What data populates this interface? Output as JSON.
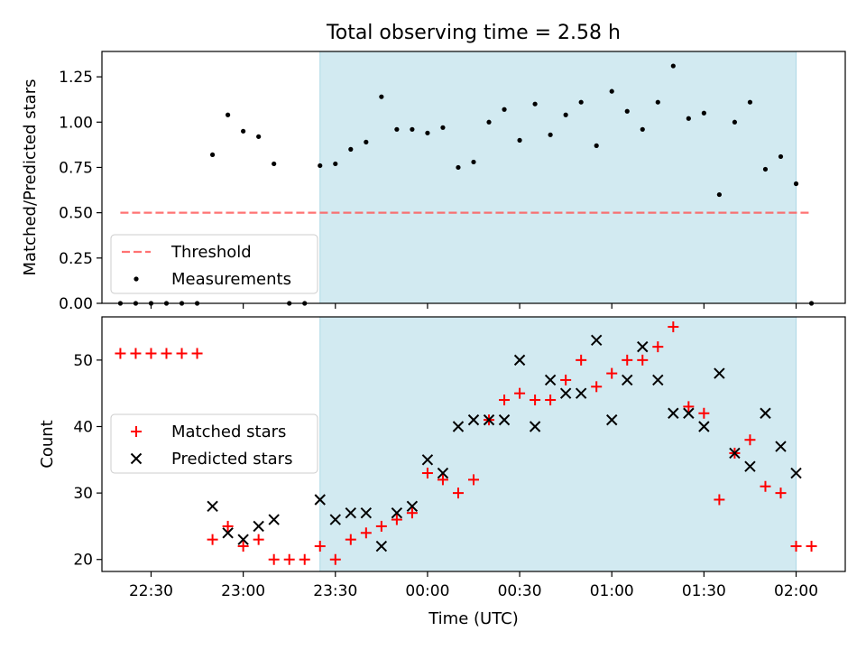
{
  "chart_data": {
    "type": "scatter",
    "title": "Total observing time = 2.58 h",
    "xlabel": "Time (UTC)",
    "x_ticks": [
      "22:30",
      "23:00",
      "23:30",
      "00:00",
      "00:30",
      "01:00",
      "01:30",
      "02:00"
    ],
    "x_range": [
      "22:14",
      "02:16"
    ],
    "observing_window": [
      "23:25",
      "02:00"
    ],
    "colors": {
      "window": "#add8e6",
      "threshold": "#ff5a5a",
      "matched": "#ff0000",
      "predicted": "#000000",
      "measurement": "#000000"
    },
    "top": {
      "ylabel": "Matched/Predicted stars",
      "ylim": [
        0,
        1.39
      ],
      "yticks": [
        "0.00",
        "0.25",
        "0.50",
        "0.75",
        "1.00",
        "1.25"
      ],
      "legend": [
        "Threshold",
        "Measurements"
      ],
      "legend_loc": "lower-left",
      "threshold": 0.5,
      "threshold_x": [
        "22:20",
        "02:05"
      ],
      "measurements": {
        "x": [
          "22:20",
          "22:25",
          "22:30",
          "22:35",
          "22:40",
          "22:45",
          "22:50",
          "22:55",
          "23:00",
          "23:05",
          "23:10",
          "23:15",
          "23:20",
          "23:25",
          "23:30",
          "23:35",
          "23:40",
          "23:45",
          "23:50",
          "23:55",
          "00:00",
          "00:05",
          "00:10",
          "00:15",
          "00:20",
          "00:25",
          "00:30",
          "00:35",
          "00:40",
          "00:45",
          "00:50",
          "00:55",
          "01:00",
          "01:05",
          "01:10",
          "01:15",
          "01:20",
          "01:25",
          "01:30",
          "01:35",
          "01:40",
          "01:45",
          "01:50",
          "01:55",
          "02:00",
          "02:05"
        ],
        "y": [
          0,
          0,
          0,
          0,
          0,
          0,
          0.82,
          1.04,
          0.95,
          0.92,
          0.77,
          0,
          0,
          0.76,
          0.77,
          0.85,
          0.89,
          1.14,
          0.96,
          0.96,
          0.94,
          0.97,
          0.75,
          0.78,
          1.0,
          1.07,
          0.9,
          1.1,
          0.93,
          1.04,
          1.11,
          0.87,
          1.17,
          1.06,
          0.96,
          1.11,
          1.31,
          1.02,
          1.05,
          0.6,
          1.0,
          1.11,
          0.74,
          0.81,
          0.66,
          0
        ]
      }
    },
    "bottom": {
      "ylabel": "Count",
      "ylim": [
        18.2,
        56.5
      ],
      "yticks": [
        "20",
        "30",
        "40",
        "50"
      ],
      "legend": [
        "Matched stars",
        "Predicted stars"
      ],
      "legend_loc": "center-left",
      "series": [
        {
          "name": "Matched stars",
          "marker": "+",
          "x": [
            "22:20",
            "22:25",
            "22:30",
            "22:35",
            "22:40",
            "22:45",
            "22:50",
            "22:55",
            "23:00",
            "23:05",
            "23:10",
            "23:15",
            "23:20",
            "23:25",
            "23:30",
            "23:35",
            "23:40",
            "23:45",
            "23:50",
            "23:55",
            "00:00",
            "00:05",
            "00:10",
            "00:15",
            "00:20",
            "00:25",
            "00:30",
            "00:35",
            "00:40",
            "00:45",
            "00:50",
            "00:55",
            "01:00",
            "01:05",
            "01:10",
            "01:15",
            "01:20",
            "01:25",
            "01:30",
            "01:35",
            "01:40",
            "01:45",
            "01:50",
            "01:55",
            "02:00",
            "02:05"
          ],
          "y": [
            51,
            51,
            51,
            51,
            51,
            51,
            23,
            25,
            22,
            23,
            20,
            20,
            20,
            22,
            20,
            23,
            24,
            25,
            26,
            27,
            33,
            32,
            30,
            32,
            41,
            44,
            45,
            44,
            44,
            47,
            50,
            46,
            48,
            50,
            50,
            52,
            55,
            43,
            42,
            29,
            36,
            38,
            31,
            30,
            22,
            22
          ]
        },
        {
          "name": "Predicted stars",
          "marker": "x",
          "x": [
            "22:50",
            "22:55",
            "23:00",
            "23:05",
            "23:10",
            "23:25",
            "23:30",
            "23:35",
            "23:40",
            "23:45",
            "23:50",
            "23:55",
            "00:00",
            "00:05",
            "00:10",
            "00:15",
            "00:20",
            "00:25",
            "00:30",
            "00:35",
            "00:40",
            "00:45",
            "00:50",
            "00:55",
            "01:00",
            "01:05",
            "01:10",
            "01:15",
            "01:20",
            "01:25",
            "01:30",
            "01:35",
            "01:40",
            "01:45",
            "01:50",
            "01:55",
            "02:00"
          ],
          "y": [
            28,
            24,
            23,
            25,
            26,
            29,
            26,
            27,
            27,
            22,
            27,
            28,
            35,
            33,
            40,
            41,
            41,
            41,
            50,
            40,
            47,
            45,
            45,
            53,
            41,
            47,
            52,
            47,
            42,
            42,
            40,
            48,
            36,
            34,
            42,
            37,
            33
          ]
        }
      ]
    }
  }
}
